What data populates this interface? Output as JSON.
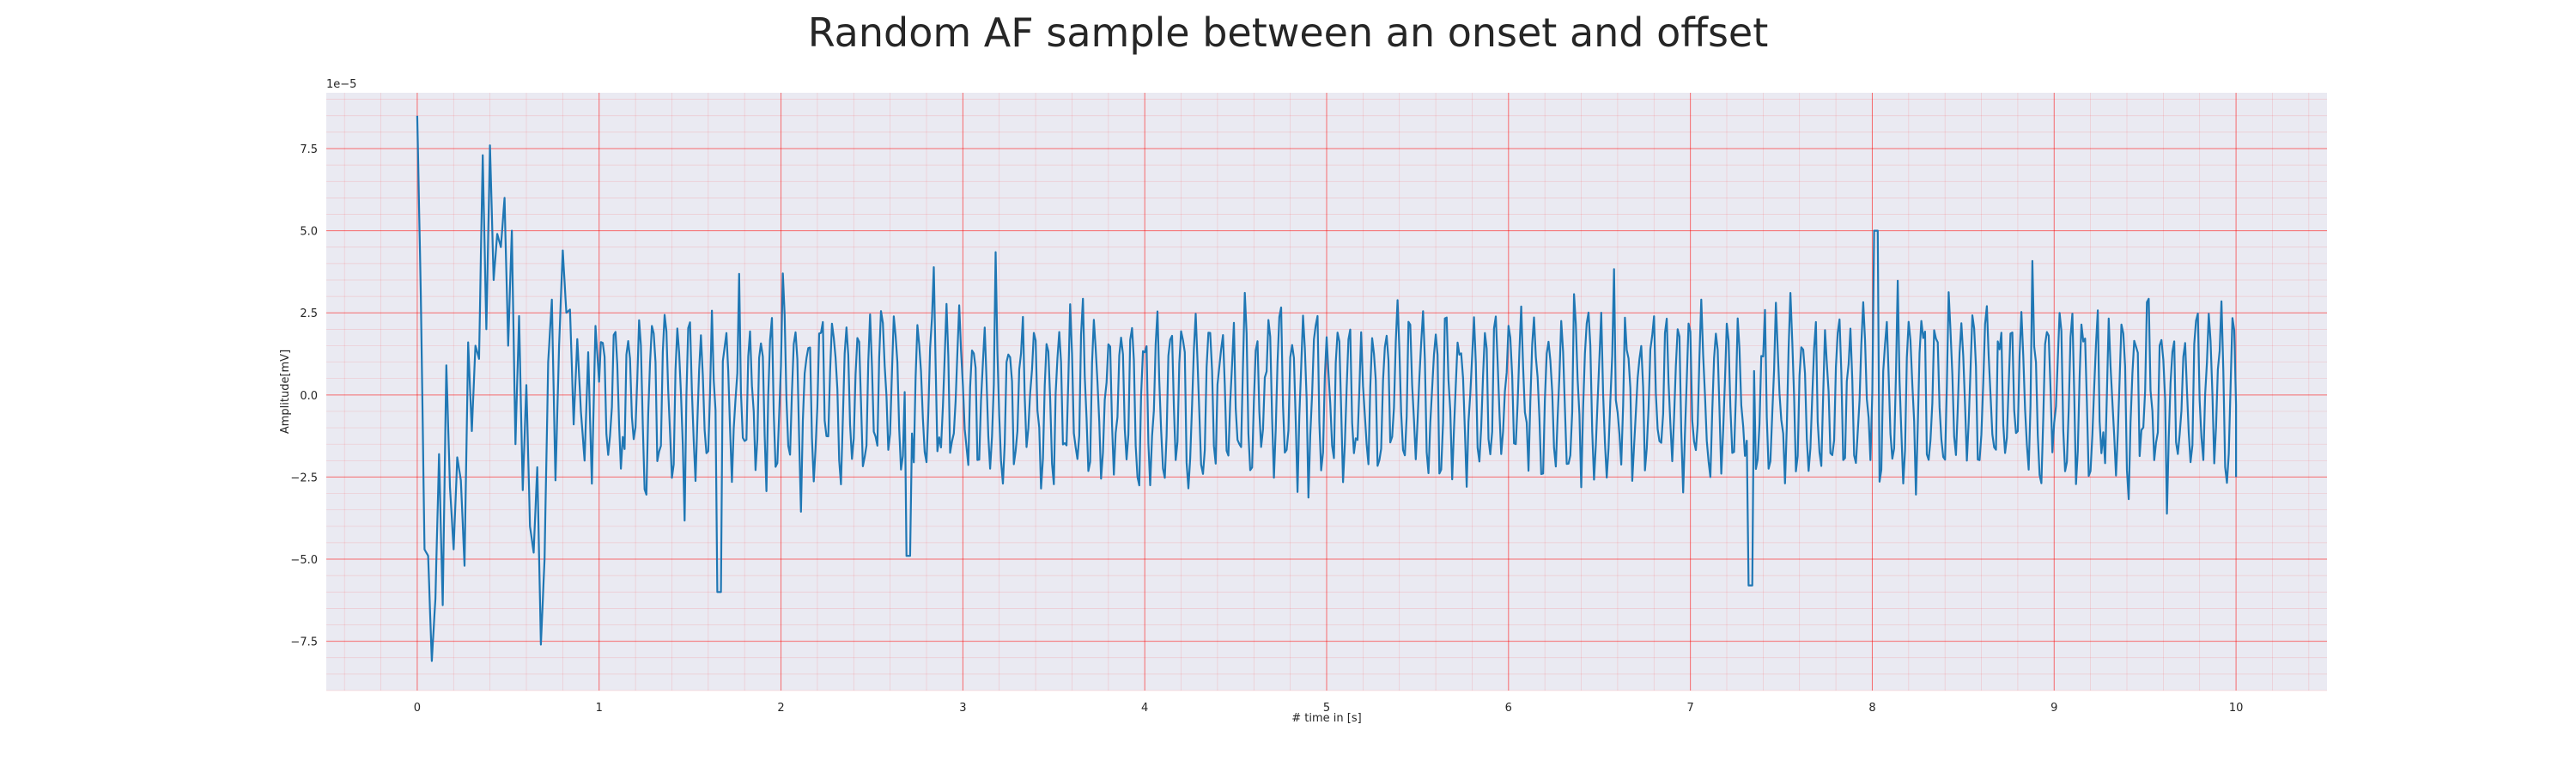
{
  "chart_data": {
    "type": "line",
    "title": "Random AF sample between an onset and offset",
    "xlabel": "# time in [s]",
    "ylabel": "Amplitude[mV]",
    "y_offset_label": "1e−5",
    "xlim": [
      -0.5,
      10.5
    ],
    "ylim": [
      -9e-05,
      9.2e-05
    ],
    "x_ticks": [
      0,
      1,
      2,
      3,
      4,
      5,
      6,
      7,
      8,
      9,
      10
    ],
    "x_tick_labels": [
      "0",
      "1",
      "2",
      "3",
      "4",
      "5",
      "6",
      "7",
      "8",
      "9",
      "10"
    ],
    "y_ticks": [
      -7.5,
      -5.0,
      -2.5,
      0.0,
      2.5,
      5.0,
      7.5
    ],
    "y_tick_labels": [
      "−7.5",
      "−5.0",
      "−2.5",
      "0.0",
      "2.5",
      "5.0",
      "7.5"
    ],
    "y_scale": 1e-05,
    "grid": true,
    "minor_grid": true,
    "series": [
      {
        "color": "#1f77b4",
        "x": [
          0.0,
          0.02,
          0.04,
          0.06,
          0.08,
          0.1,
          0.12,
          0.14,
          0.16,
          0.18,
          0.2,
          0.22,
          0.24,
          0.26,
          0.28,
          0.3,
          0.32,
          0.34,
          0.36,
          0.38,
          0.4,
          0.42,
          0.44,
          0.46,
          0.48,
          0.5,
          0.52,
          0.54,
          0.56,
          0.58,
          0.6,
          0.62,
          0.64,
          0.66,
          0.68,
          0.7,
          0.72,
          0.74,
          0.76,
          0.78,
          0.8,
          0.82,
          0.84,
          0.86,
          0.88,
          0.9,
          0.92,
          0.94,
          0.96,
          0.98,
          1.0
        ],
        "y": [
          8.5e-05,
          3e-05,
          -4.7e-05,
          -4.9e-05,
          -8.1e-05,
          -6.2e-05,
          -1.8e-05,
          -6.4e-05,
          9e-06,
          -2.8e-05,
          -4.7e-05,
          -1.9e-05,
          -2.6e-05,
          -5.2e-05,
          1.6e-05,
          -1.1e-05,
          1.5e-05,
          1.1e-05,
          7.3e-05,
          2e-05,
          7.6e-05,
          3.5e-05,
          4.9e-05,
          4.5e-05,
          6e-05,
          1.5e-05,
          5e-05,
          -1.5e-05,
          2.4e-05,
          -2.9e-05,
          3e-06,
          -4e-05,
          -4.8e-05,
          -2.2e-05,
          -7.6e-05,
          -5e-05,
          1e-05,
          2.9e-05,
          -2.6e-05,
          1.5e-05,
          4.4e-05,
          2.5e-05,
          2.6e-05,
          -9e-06,
          1.7e-05,
          -5e-06,
          -2e-05,
          1.3e-05,
          -2.7e-05,
          2.1e-05,
          4e-06
        ]
      }
    ]
  }
}
